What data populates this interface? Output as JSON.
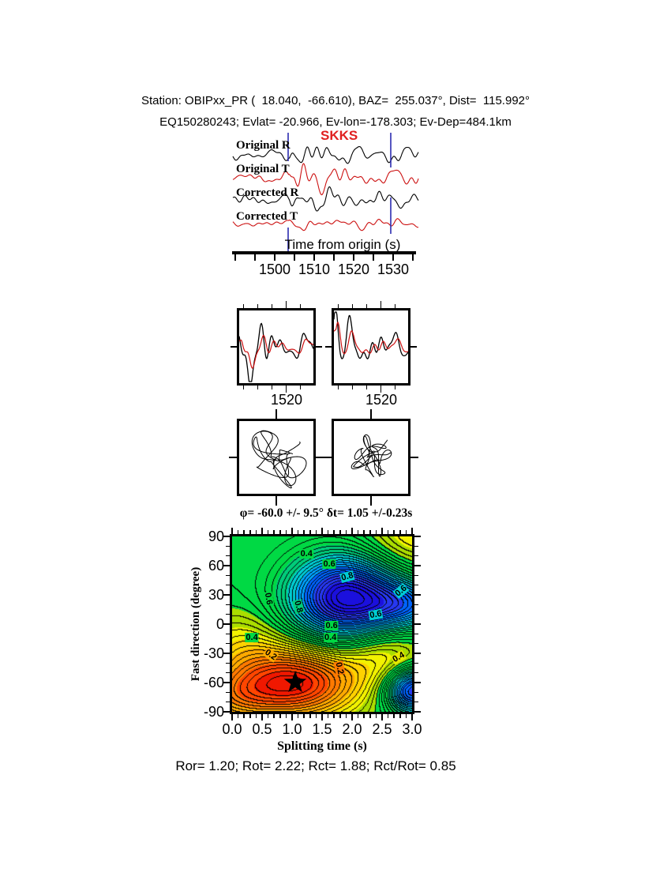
{
  "header": {
    "line1": "Station: OBIPxx_PR (  18.040,  -66.610), BAZ=  255.037°, Dist=  115.992°",
    "line2": "EQ150280243; Evlat= -20.966, Ev-lon=-178.303; Ev-Dep=484.1km"
  },
  "waveform_section": {
    "phase_label": "SKKS",
    "phase_color": "#e02020",
    "trace_black": "#000000",
    "trace_red": "#cc1111",
    "window_color": "#2b2bb0",
    "window_times": [
      1503.4,
      1529.4
    ],
    "traces": [
      {
        "label": "Original R",
        "color": "#000000"
      },
      {
        "label": "Original T",
        "color": "#cc1111"
      },
      {
        "label": "Corrected R",
        "color": "#000000"
      },
      {
        "label": "Corrected T",
        "color": "#cc1111"
      }
    ],
    "time_axis": {
      "title": "Time from origin (s)",
      "tick_labels": [
        "1500",
        "1510",
        "1520",
        "1530"
      ],
      "tick_step_s": 5
    }
  },
  "overlay_panels": {
    "tick_label": "1520",
    "description": "windowed component overlays, black vs red",
    "pair_colors": [
      "#000000",
      "#cc1111"
    ]
  },
  "pm_panels": {
    "description": "particle motion before and after correction",
    "color": "#000000"
  },
  "chart_data": {
    "type": "heatmap",
    "title": "φ= -60.0 +/- 9.5° δt= 1.05 +/-0.23s",
    "xlabel": "Splitting time (s)",
    "ylabel": "Fast direction (degree)",
    "x_range": [
      0,
      3
    ],
    "y_range": [
      -90,
      90
    ],
    "x_ticks": [
      "0.0",
      "0.5",
      "1.0",
      "1.5",
      "2.0",
      "2.5",
      "3.0"
    ],
    "y_ticks": [
      "90",
      "60",
      "30",
      "0",
      "-30",
      "-60",
      "-90"
    ],
    "x_minor_step": 0.1,
    "y_minor_step": 10,
    "grid": false,
    "best_fit": {
      "phi_deg": -60.0,
      "phi_err_deg": 9.5,
      "dt_s": 1.05,
      "dt_err_s": 0.23,
      "marker": "black-star",
      "marker_x": 1.05,
      "marker_y": -60
    },
    "contour_interval": 0.025,
    "surface_model": {
      "base": 0.45,
      "blobs": [
        {
          "a": 0.52,
          "x": 1.85,
          "y": 28,
          "sx": 0.62,
          "sy": 30
        },
        {
          "a": 0.25,
          "x": 2.9,
          "y": 20,
          "sx": 0.5,
          "sy": 18
        },
        {
          "a": -0.4,
          "x": 1.05,
          "y": -60,
          "sx": 0.75,
          "sy": 26
        },
        {
          "a": 0.42,
          "x": 3.0,
          "y": -68,
          "sx": 0.3,
          "sy": 16
        },
        {
          "a": -0.1,
          "x": 0.1,
          "y": -20,
          "sx": 0.5,
          "sy": 25
        },
        {
          "a": -0.12,
          "x": 2.55,
          "y": -30,
          "sx": 0.5,
          "sy": 22
        },
        {
          "a": -0.13,
          "x": 3.0,
          "y": 90,
          "sx": 0.6,
          "sy": 25
        },
        {
          "a": -0.14,
          "x": 0.0,
          "y": -75,
          "sx": 0.5,
          "sy": 20
        }
      ]
    },
    "palette": [
      {
        "upto": 0.08,
        "color": "#f01800"
      },
      {
        "upto": 0.14,
        "color": "#ff4600"
      },
      {
        "upto": 0.2,
        "color": "#ff7a00"
      },
      {
        "upto": 0.26,
        "color": "#ffaa00"
      },
      {
        "upto": 0.31,
        "color": "#ffd200"
      },
      {
        "upto": 0.36,
        "color": "#f2f200"
      },
      {
        "upto": 0.42,
        "color": "#aadd00"
      },
      {
        "upto": 0.54,
        "color": "#00d944"
      },
      {
        "upto": 0.61,
        "color": "#00cc7a"
      },
      {
        "upto": 0.68,
        "color": "#00cdd4"
      },
      {
        "upto": 0.75,
        "color": "#00a2ff"
      },
      {
        "upto": 0.83,
        "color": "#0064ff"
      },
      {
        "upto": 0.91,
        "color": "#2738f0"
      },
      {
        "upto": 9.0,
        "color": "#1b10dd"
      }
    ],
    "contour_labels": [
      {
        "text": "0.4",
        "x": 1.24,
        "y": 72,
        "bg": "#00d944",
        "rot": 0
      },
      {
        "text": "0.6",
        "x": 1.62,
        "y": 62,
        "bg": "#00d944",
        "rot": 0
      },
      {
        "text": "0.8",
        "x": 1.92,
        "y": 49,
        "bg": "#00cdd4",
        "rot": -15
      },
      {
        "text": "0.6",
        "x": 2.82,
        "y": 34,
        "bg": "#00cdd4",
        "rot": -40
      },
      {
        "text": "0.6",
        "x": 2.39,
        "y": 10,
        "bg": "#00cdd4",
        "rot": -10
      },
      {
        "text": "0.6",
        "x": 1.66,
        "y": -2,
        "bg": "#00d944",
        "rot": 0
      },
      {
        "text": "0.4",
        "x": 1.64,
        "y": -14,
        "bg": "#00d944",
        "rot": 0
      },
      {
        "text": "0.4",
        "x": 0.33,
        "y": -14,
        "bg": "#00d944",
        "rot": 0
      },
      {
        "text": "0.6",
        "x": 0.6,
        "y": 26,
        "bg": "#00d944",
        "rot": 80
      },
      {
        "text": "0.8",
        "x": 1.11,
        "y": 18,
        "bg": "#00cc7a",
        "rot": 75
      },
      {
        "text": "0.2",
        "x": 0.65,
        "y": -32,
        "bg": "#ffaa00",
        "rot": 35
      },
      {
        "text": "0.2",
        "x": 1.79,
        "y": -45,
        "bg": "#ff7a00",
        "rot": 78
      },
      {
        "text": "0.4",
        "x": 2.77,
        "y": -34,
        "bg": "#e8e800",
        "rot": -30
      }
    ]
  },
  "footer": {
    "result_line": "Ror= 1.20; Rot= 2.22; Rct= 1.88; Rct/Rot= 0.85"
  }
}
